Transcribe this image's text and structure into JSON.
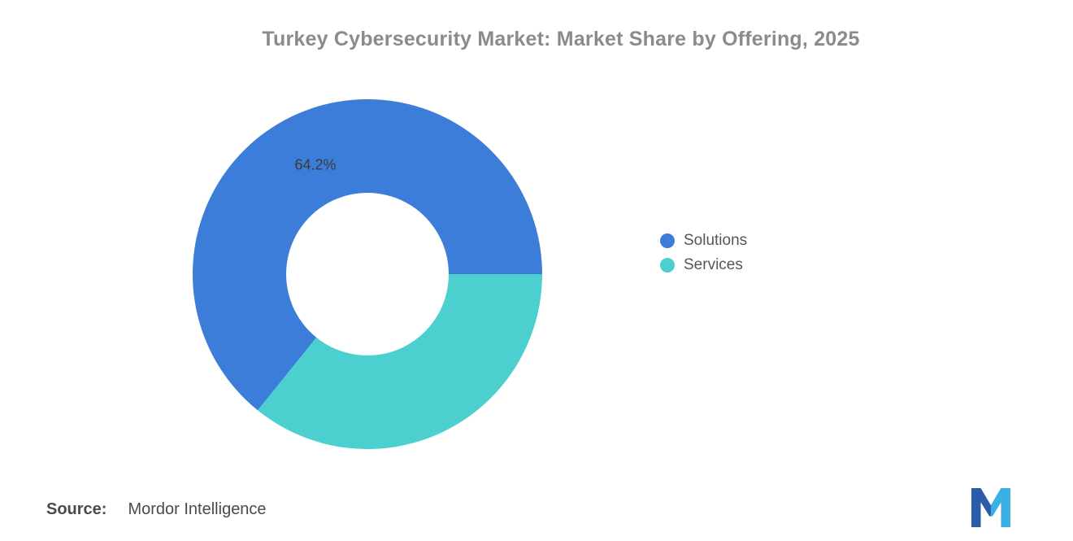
{
  "title": "Turkey Cybersecurity Market: Market Share by Offering, 2025",
  "source": {
    "label": "Source:",
    "value": "Mordor Intelligence"
  },
  "chart_data": {
    "type": "pie",
    "subtype": "donut",
    "title": "Turkey Cybersecurity Market: Market Share by Offering, 2025",
    "series": [
      {
        "name": "Solutions",
        "value": 64.2,
        "color": "#3c7dd9",
        "label": "64.2%"
      },
      {
        "name": "Services",
        "value": 35.8,
        "color": "#4bcfcf",
        "label": ""
      }
    ],
    "start_angle_deg": 0,
    "direction": "counterclockwise",
    "outer_radius_px": 215,
    "inner_radius_ratio": 0.465,
    "label_radius_ratio": 0.69,
    "legend_position": "right",
    "hole_color": "#ffffff"
  },
  "logo": {
    "name": "mordor-intelligence-logo",
    "colors": [
      "#2a5caa",
      "#3bb1e3"
    ]
  }
}
